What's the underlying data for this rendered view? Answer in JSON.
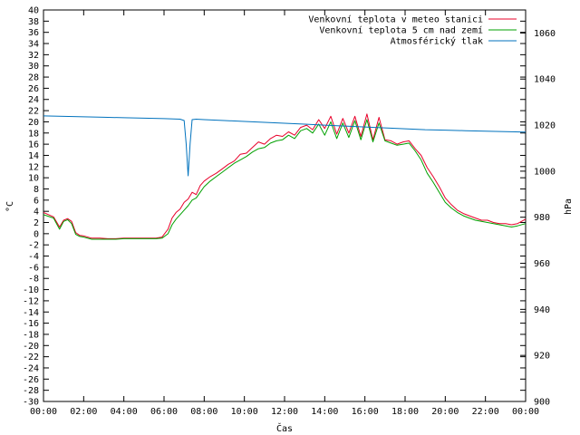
{
  "chart_data": {
    "type": "line",
    "title": "",
    "xlabel": "Čas",
    "ylabel": "°C",
    "y2label": "hPa",
    "grid": false,
    "legend_position": "top-right",
    "xlim": [
      0,
      24
    ],
    "ylim": [
      -30,
      40
    ],
    "y2lim": [
      900,
      1070
    ],
    "x_tick_labels": [
      "00:00",
      "02:00",
      "04:00",
      "06:00",
      "08:00",
      "10:00",
      "12:00",
      "14:00",
      "16:00",
      "18:00",
      "20:00",
      "22:00",
      "00:00"
    ],
    "y_tick_labels": [
      "40",
      "38",
      "36",
      "34",
      "32",
      "30",
      "28",
      "26",
      "24",
      "22",
      "20",
      "18",
      "16",
      "14",
      "12",
      "10",
      "8",
      "6",
      "4",
      "2",
      "0",
      "-2",
      "-4",
      "-6",
      "-8",
      "-10",
      "-12",
      "-14",
      "-16",
      "-18",
      "-20",
      "-22",
      "-24",
      "-26",
      "-28",
      "-30"
    ],
    "y2_tick_labels": [
      "1060",
      "1040",
      "1020",
      "1000",
      "980",
      "960",
      "940",
      "920",
      "900"
    ],
    "series": [
      {
        "name": "Venkovní teplota v meteo stanici",
        "color": "#e8002a",
        "axis": "left",
        "x": [
          0,
          0.5,
          0.8,
          1.0,
          1.2,
          1.4,
          1.6,
          1.8,
          2.0,
          2.4,
          2.8,
          3.2,
          3.6,
          4.0,
          4.4,
          4.8,
          5.2,
          5.6,
          5.9,
          6.2,
          6.4,
          6.6,
          6.8,
          7.0,
          7.2,
          7.4,
          7.6,
          7.8,
          8.0,
          8.3,
          8.6,
          8.9,
          9.2,
          9.5,
          9.8,
          10.1,
          10.4,
          10.7,
          11.0,
          11.3,
          11.6,
          11.9,
          12.2,
          12.5,
          12.8,
          13.1,
          13.4,
          13.7,
          14.0,
          14.3,
          14.6,
          14.9,
          15.2,
          15.5,
          15.8,
          16.1,
          16.4,
          16.7,
          17.0,
          17.3,
          17.6,
          17.9,
          18.2,
          18.5,
          18.8,
          19.1,
          19.4,
          19.7,
          20.0,
          20.3,
          20.6,
          20.9,
          21.2,
          21.5,
          21.8,
          22.1,
          22.4,
          22.7,
          23.0,
          23.3,
          23.6,
          24.0
        ],
        "y": [
          3.8,
          3.0,
          1.2,
          2.4,
          2.7,
          2.2,
          0.2,
          -0.3,
          -0.4,
          -0.8,
          -0.8,
          -0.9,
          -0.9,
          -0.8,
          -0.8,
          -0.8,
          -0.8,
          -0.8,
          -0.6,
          0.8,
          2.8,
          3.8,
          4.4,
          5.6,
          6.2,
          7.4,
          7.0,
          8.6,
          9.4,
          10.2,
          10.8,
          11.6,
          12.4,
          13.0,
          14.2,
          14.4,
          15.4,
          16.4,
          16.0,
          17.0,
          17.6,
          17.4,
          18.2,
          17.6,
          19.0,
          19.4,
          18.6,
          20.4,
          18.8,
          21.0,
          17.8,
          20.6,
          18.0,
          21.0,
          17.4,
          21.4,
          16.8,
          20.8,
          16.8,
          16.6,
          16.0,
          16.4,
          16.6,
          15.2,
          14.0,
          11.8,
          10.2,
          8.4,
          6.4,
          5.2,
          4.2,
          3.6,
          3.2,
          2.8,
          2.4,
          2.4,
          2.0,
          1.8,
          1.8,
          1.6,
          1.8,
          2.6
        ]
      },
      {
        "name": "Venkovní teplota 5 cm nad zemí",
        "color": "#00a000",
        "axis": "left",
        "x": [
          0,
          0.5,
          0.8,
          1.0,
          1.2,
          1.4,
          1.6,
          1.8,
          2.0,
          2.4,
          2.8,
          3.2,
          3.6,
          4.0,
          4.4,
          4.8,
          5.2,
          5.6,
          5.9,
          6.2,
          6.4,
          6.6,
          6.8,
          7.0,
          7.2,
          7.4,
          7.6,
          7.8,
          8.0,
          8.3,
          8.6,
          8.9,
          9.2,
          9.5,
          9.8,
          10.1,
          10.4,
          10.7,
          11.0,
          11.3,
          11.6,
          11.9,
          12.2,
          12.5,
          12.8,
          13.1,
          13.4,
          13.7,
          14.0,
          14.3,
          14.6,
          14.9,
          15.2,
          15.5,
          15.8,
          16.1,
          16.4,
          16.7,
          17.0,
          17.3,
          17.6,
          17.9,
          18.2,
          18.5,
          18.8,
          19.1,
          19.4,
          19.7,
          20.0,
          20.3,
          20.6,
          20.9,
          21.2,
          21.5,
          21.8,
          22.1,
          22.4,
          22.7,
          23.0,
          23.3,
          23.6,
          24.0
        ],
        "y": [
          3.4,
          2.8,
          0.8,
          2.2,
          2.5,
          1.8,
          -0.1,
          -0.5,
          -0.6,
          -1.0,
          -1.0,
          -1.0,
          -1.0,
          -0.9,
          -0.9,
          -0.9,
          -0.9,
          -0.9,
          -0.8,
          0.0,
          1.6,
          2.6,
          3.4,
          4.2,
          5.0,
          6.0,
          6.4,
          7.4,
          8.4,
          9.4,
          10.2,
          11.0,
          11.8,
          12.6,
          13.2,
          13.8,
          14.6,
          15.2,
          15.4,
          16.2,
          16.6,
          16.8,
          17.6,
          17.0,
          18.4,
          18.8,
          18.0,
          19.6,
          17.6,
          20.0,
          17.0,
          19.8,
          17.2,
          20.2,
          16.8,
          20.4,
          16.4,
          19.8,
          16.6,
          16.2,
          15.8,
          16.0,
          16.2,
          14.8,
          13.2,
          10.8,
          9.2,
          7.4,
          5.6,
          4.6,
          3.8,
          3.2,
          2.8,
          2.4,
          2.2,
          2.0,
          1.8,
          1.6,
          1.4,
          1.2,
          1.4,
          1.8
        ]
      },
      {
        "name": "Atmosférický tlak",
        "color": "#0072bd",
        "axis": "right",
        "x": [
          0,
          1,
          2,
          3,
          4,
          5,
          6,
          6.8,
          7.0,
          7.1,
          7.2,
          7.3,
          7.4,
          7.6,
          8,
          9,
          10,
          11,
          12,
          13,
          14,
          15,
          16,
          17,
          18,
          19,
          20,
          21,
          22,
          23,
          24
        ],
        "y": [
          1024,
          1023.8,
          1023.6,
          1023.4,
          1023.2,
          1023.0,
          1022.8,
          1022.6,
          1022.0,
          1012,
          998,
          1012,
          1022.4,
          1022.6,
          1022.4,
          1022.0,
          1021.6,
          1021.2,
          1020.8,
          1020.4,
          1020.0,
          1019.6,
          1019.2,
          1018.8,
          1018.4,
          1018.0,
          1017.8,
          1017.6,
          1017.4,
          1017.2,
          1017.0
        ]
      }
    ]
  }
}
